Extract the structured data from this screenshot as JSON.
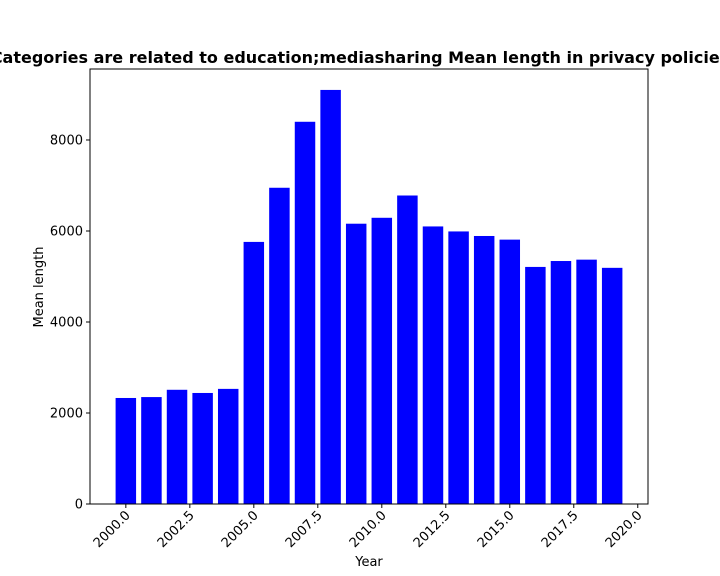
{
  "chart_data": {
    "type": "bar",
    "title": "Categories are related to education;mediasharing Mean length in privacy policies",
    "xlabel": "Year",
    "ylabel": "Mean length",
    "x": [
      2000,
      2001,
      2002,
      2003,
      2004,
      2005,
      2006,
      2007,
      2008,
      2009,
      2010,
      2011,
      2012,
      2013,
      2014,
      2015,
      2016,
      2017,
      2018,
      2019
    ],
    "values": [
      2330,
      2350,
      2510,
      2440,
      2530,
      5760,
      6950,
      8400,
      9100,
      6160,
      6290,
      6780,
      6100,
      5990,
      5890,
      5810,
      5210,
      5340,
      5370,
      5190
    ],
    "xlim": [
      1998.6,
      2020.4
    ],
    "ylim": [
      0,
      9560
    ],
    "xticks": [
      2000,
      2002.5,
      2005,
      2007.5,
      2010,
      2012.5,
      2015,
      2017.5,
      2020
    ],
    "xtick_labels": [
      "2000.0",
      "2002.5",
      "2005.0",
      "2007.5",
      "2010.0",
      "2012.5",
      "2015.0",
      "2017.5",
      "2020.0"
    ],
    "yticks": [
      0,
      2000,
      4000,
      6000,
      8000
    ],
    "ytick_labels": [
      "0",
      "2000",
      "4000",
      "6000",
      "8000"
    ],
    "bar_width": 0.8,
    "bar_color": "#0000ff",
    "grid": false,
    "legend": "none"
  }
}
